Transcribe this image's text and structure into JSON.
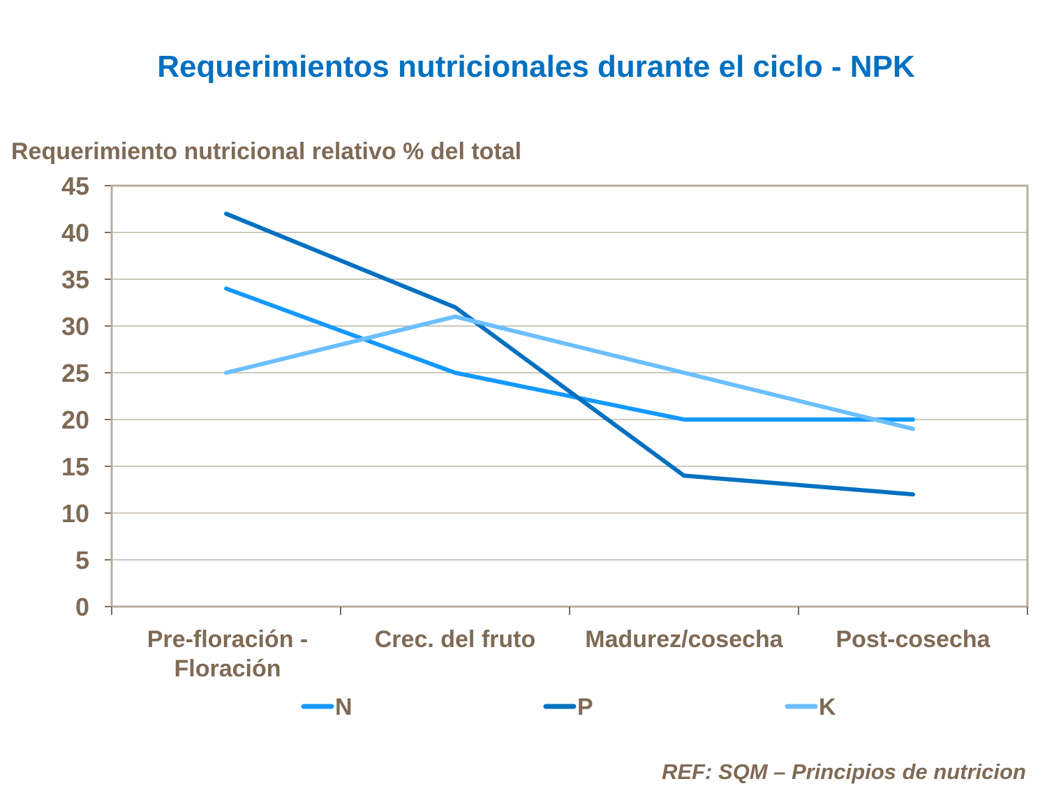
{
  "chart_data": {
    "type": "line",
    "title": "Requerimientos nutricionales durante el ciclo - NPK",
    "ylabel": "Requerimiento nutricional relativo % del total",
    "xlabel": "",
    "categories": [
      [
        "Pre-floración -",
        "Floración"
      ],
      [
        "Crec. del fruto"
      ],
      [
        "Madurez/cosecha"
      ],
      [
        "Post-cosecha"
      ]
    ],
    "ylim": [
      0,
      45
    ],
    "yticks": [
      0,
      5,
      10,
      15,
      20,
      25,
      30,
      35,
      40,
      45
    ],
    "grid": true,
    "legend_position": "bottom",
    "series": [
      {
        "name": "N",
        "color": "#1499FF",
        "values": [
          34,
          25,
          20,
          20
        ]
      },
      {
        "name": "P",
        "color": "#0070C0",
        "values": [
          42,
          32,
          14,
          12
        ]
      },
      {
        "name": "K",
        "color": "#6BBFFF",
        "values": [
          25,
          31,
          25,
          19
        ]
      }
    ],
    "annotation": "REF: SQM – Principios de nutricion"
  },
  "colors": {
    "title": "#0070C0",
    "text": "#7F6A55",
    "grid": "#B0A696",
    "frame": "#B8AC9E"
  }
}
